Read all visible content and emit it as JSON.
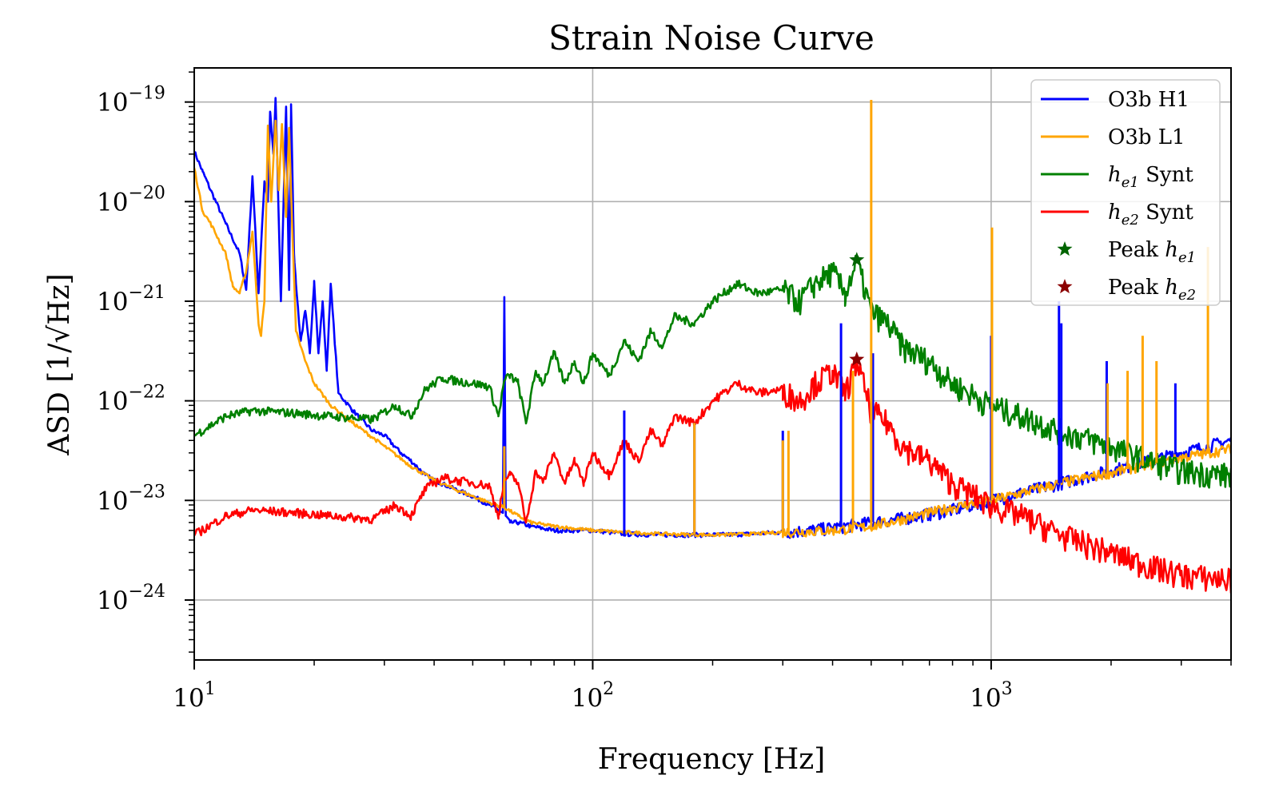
{
  "chart_data": {
    "type": "line",
    "title": "Strain Noise Curve",
    "xlabel": "Frequency [Hz]",
    "ylabel": "ASD [1/√Hz]",
    "xscale": "log",
    "yscale": "log",
    "xlim": [
      10,
      4000
    ],
    "ylim": [
      2.5e-25,
      2.2e-19
    ],
    "grid": true,
    "legend_position": "top-right",
    "x_ticks": [
      {
        "value": 10,
        "base": "10",
        "exp": "1"
      },
      {
        "value": 100,
        "base": "10",
        "exp": "2"
      },
      {
        "value": 1000,
        "base": "10",
        "exp": "3"
      }
    ],
    "y_ticks": [
      {
        "value": 1e-19,
        "base": "10",
        "exp": "−19"
      },
      {
        "value": 1e-20,
        "base": "10",
        "exp": "−20"
      },
      {
        "value": 1e-21,
        "base": "10",
        "exp": "−21"
      },
      {
        "value": 1e-22,
        "base": "10",
        "exp": "−22"
      },
      {
        "value": 1e-23,
        "base": "10",
        "exp": "−23"
      },
      {
        "value": 1e-24,
        "base": "10",
        "exp": "−24"
      }
    ],
    "series": [
      {
        "name": "O3b H1",
        "color": "#0000ff",
        "jitter": 0.05,
        "x": [
          10,
          10.5,
          11,
          12,
          13,
          13.5,
          14,
          14.5,
          15,
          15.3,
          15.5,
          15.8,
          16,
          16.5,
          17,
          17.3,
          17.5,
          17.8,
          18,
          18.5,
          19,
          19.5,
          20,
          20.5,
          21,
          21.5,
          22,
          23,
          25,
          28,
          30,
          33,
          35,
          38,
          40,
          45,
          50,
          55,
          58,
          59.5,
          60,
          60.5,
          62,
          65,
          70,
          80,
          90,
          100,
          110,
          120,
          150,
          200,
          250,
          300,
          350,
          400,
          500,
          600,
          700,
          800,
          1000,
          1200,
          1500,
          2000,
          2500,
          3000,
          3500,
          4000
        ],
        "y": [
          3.2e-20,
          2e-20,
          1.3e-20,
          6e-21,
          3e-21,
          1.3e-21,
          1.8e-20,
          1.2e-21,
          1.6e-20,
          1e-20,
          8e-20,
          3e-20,
          1.1e-19,
          1e-21,
          9e-20,
          1.3e-21,
          9.5e-20,
          3e-21,
          1.5e-21,
          4e-22,
          8e-22,
          3e-22,
          1.6e-21,
          3e-22,
          1e-21,
          2e-22,
          1.5e-21,
          1.2e-22,
          8e-23,
          5e-23,
          4.5e-23,
          3e-23,
          2.5e-23,
          1.8e-23,
          1.6e-23,
          1.3e-23,
          1.1e-23,
          9e-24,
          8e-24,
          7.5e-24,
          1.1e-21,
          7e-24,
          6e-24,
          6e-24,
          5.5e-24,
          5e-24,
          5e-24,
          5e-24,
          4.8e-24,
          4.6e-24,
          4.5e-24,
          4.5e-24,
          4.6e-24,
          4.8e-24,
          5e-24,
          5.3e-24,
          6e-24,
          6.6e-24,
          7.3e-24,
          8e-24,
          1e-23,
          1.2e-23,
          1.5e-23,
          2e-23,
          2.5e-23,
          3e-23,
          3.5e-23,
          4e-23
        ]
      },
      {
        "name": "O3b L1",
        "color": "#ffa500",
        "jitter": 0.04,
        "x": [
          10,
          10.5,
          11,
          12,
          12.5,
          13,
          13.5,
          14,
          14.5,
          14.7,
          15,
          15.3,
          15.6,
          16,
          16.3,
          16.6,
          17,
          17.3,
          17.6,
          18,
          19,
          20,
          22,
          25,
          30,
          35,
          40,
          45,
          50,
          55,
          60,
          65,
          70,
          80,
          100,
          120,
          150,
          200,
          250,
          300,
          400,
          500,
          600,
          700,
          800,
          1000,
          1200,
          1500,
          2000,
          2500,
          3000,
          3500,
          4000
        ],
        "y": [
          2.2e-20,
          8e-21,
          6e-21,
          3e-21,
          1.4e-21,
          1.2e-21,
          2e-21,
          5e-21,
          6e-22,
          4.5e-22,
          1e-21,
          5.8e-20,
          1e-20,
          6.5e-20,
          1.3e-20,
          6e-20,
          7e-21,
          5.5e-20,
          6e-21,
          5e-22,
          2.5e-22,
          1.5e-22,
          9e-23,
          6e-23,
          3.5e-23,
          2.2e-23,
          1.6e-23,
          1.3e-23,
          1.1e-23,
          9.5e-24,
          8.5e-24,
          7e-24,
          6e-24,
          5.5e-24,
          5e-24,
          4.8e-24,
          4.6e-24,
          4.5e-24,
          4.6e-24,
          4.8e-24,
          5e-24,
          5.5e-24,
          6.5e-24,
          7.5e-24,
          8.5e-24,
          1e-23,
          1.2e-23,
          1.5e-23,
          1.9e-23,
          2.3e-23,
          2.7e-23,
          3e-23,
          3.3e-23
        ]
      },
      {
        "name": "h_e1 Synt",
        "label_main": "h",
        "label_sub": "e1",
        "label_tail": " Synt",
        "color": "#008000",
        "jitter": 0.1,
        "x": [
          10,
          12,
          14,
          18,
          22,
          28,
          32,
          35,
          38,
          42,
          45,
          50,
          55,
          58,
          60,
          62,
          65,
          68,
          72,
          75,
          80,
          85,
          90,
          95,
          100,
          110,
          120,
          130,
          140,
          150,
          160,
          180,
          200,
          230,
          260,
          300,
          330,
          360,
          400,
          430,
          460,
          500,
          550,
          600,
          700,
          800,
          1000,
          1200,
          1500,
          2000,
          2500,
          3000,
          4000
        ],
        "y": [
          4.5e-23,
          7e-23,
          8e-23,
          7.5e-23,
          7e-23,
          6.5e-23,
          9e-23,
          7e-23,
          1.3e-22,
          1.7e-22,
          1.6e-22,
          1.5e-22,
          1.4e-22,
          7e-23,
          1.6e-22,
          1.8e-22,
          1.5e-22,
          6e-23,
          2e-22,
          1.5e-22,
          3e-22,
          1.5e-22,
          2.5e-22,
          1.5e-22,
          3e-22,
          1.8e-22,
          4e-22,
          2.5e-22,
          5e-22,
          3.5e-22,
          7e-22,
          6e-22,
          1e-21,
          1.5e-21,
          1.2e-21,
          1.3e-21,
          1e-21,
          1.5e-21,
          2e-21,
          1.2e-21,
          2.5e-21,
          8e-22,
          6e-22,
          3.5e-22,
          2.5e-22,
          1.5e-22,
          9e-23,
          7e-23,
          5e-23,
          3.5e-23,
          2.5e-23,
          2e-23,
          1.8e-23
        ]
      },
      {
        "name": "h_e2 Synt",
        "label_main": "h",
        "label_sub": "e2",
        "label_tail": " Synt",
        "color": "#ff0000",
        "jitter": 0.1,
        "x": [
          10,
          12,
          14,
          18,
          22,
          28,
          32,
          35,
          38,
          42,
          45,
          50,
          55,
          58,
          60,
          62,
          65,
          68,
          72,
          75,
          80,
          85,
          90,
          95,
          100,
          110,
          120,
          130,
          140,
          150,
          160,
          180,
          200,
          230,
          260,
          300,
          330,
          360,
          400,
          430,
          460,
          500,
          550,
          600,
          700,
          800,
          1000,
          1200,
          1500,
          2000,
          2500,
          3000,
          4000
        ],
        "y": [
          4.5e-24,
          7e-24,
          8e-24,
          7.5e-24,
          7e-24,
          6.5e-24,
          9e-24,
          7e-24,
          1.3e-23,
          1.7e-23,
          1.6e-23,
          1.5e-23,
          1.4e-23,
          7e-24,
          1.6e-23,
          1.8e-23,
          1.5e-23,
          6e-24,
          2e-23,
          1.5e-23,
          3e-23,
          1.5e-23,
          2.5e-23,
          1.5e-23,
          3e-23,
          1.8e-23,
          4e-23,
          2.5e-23,
          5e-23,
          3.5e-23,
          7e-23,
          6e-23,
          1e-22,
          1.5e-22,
          1.2e-22,
          1.3e-22,
          1e-22,
          1.5e-22,
          2e-22,
          1.2e-22,
          2.5e-22,
          8e-23,
          6e-23,
          3.5e-23,
          2.5e-23,
          1.5e-23,
          9e-24,
          7e-24,
          4.5e-24,
          3e-24,
          2.2e-24,
          1.8e-24,
          1.6e-24
        ]
      }
    ],
    "spikes": [
      {
        "series": "O3b H1",
        "x": 60,
        "y": 1.1e-21
      },
      {
        "series": "O3b H1",
        "x": 120,
        "y": 8e-23
      },
      {
        "series": "O3b H1",
        "x": 180,
        "y": 6e-23
      },
      {
        "series": "O3b H1",
        "x": 300,
        "y": 5e-23
      },
      {
        "series": "O3b H1",
        "x": 420,
        "y": 6e-22
      },
      {
        "series": "O3b H1",
        "x": 505,
        "y": 3e-22
      },
      {
        "series": "O3b H1",
        "x": 1000,
        "y": 4.5e-22
      },
      {
        "series": "O3b H1",
        "x": 1480,
        "y": 1e-21
      },
      {
        "series": "O3b H1",
        "x": 1500,
        "y": 6e-22
      },
      {
        "series": "O3b H1",
        "x": 1950,
        "y": 2.5e-22
      },
      {
        "series": "O3b H1",
        "x": 2900,
        "y": 1.5e-22
      },
      {
        "series": "O3b L1",
        "x": 60,
        "y": 3.5e-23
      },
      {
        "series": "O3b L1",
        "x": 180,
        "y": 6e-23
      },
      {
        "series": "O3b L1",
        "x": 300,
        "y": 4e-23
      },
      {
        "series": "O3b L1",
        "x": 310,
        "y": 5e-23
      },
      {
        "series": "O3b L1",
        "x": 450,
        "y": 2e-22
      },
      {
        "series": "O3b L1",
        "x": 500,
        "y": 1.05e-19
      },
      {
        "series": "O3b L1",
        "x": 1005,
        "y": 5.5e-21
      },
      {
        "series": "O3b L1",
        "x": 1960,
        "y": 1.5e-22
      },
      {
        "series": "O3b L1",
        "x": 2200,
        "y": 2e-22
      },
      {
        "series": "O3b L1",
        "x": 2400,
        "y": 4.5e-22
      },
      {
        "series": "O3b L1",
        "x": 2600,
        "y": 2.5e-22
      },
      {
        "series": "O3b L1",
        "x": 3500,
        "y": 3.5e-21
      }
    ],
    "markers": [
      {
        "name": "Peak h_e1",
        "label_main": "Peak ",
        "label_italic": "h",
        "label_sub": "e1",
        "x": 460,
        "y": 2.6e-21,
        "color": "#006400"
      },
      {
        "name": "Peak h_e2",
        "label_main": "Peak ",
        "label_italic": "h",
        "label_sub": "e2",
        "x": 460,
        "y": 2.6e-22,
        "color": "#8b0000"
      }
    ]
  }
}
